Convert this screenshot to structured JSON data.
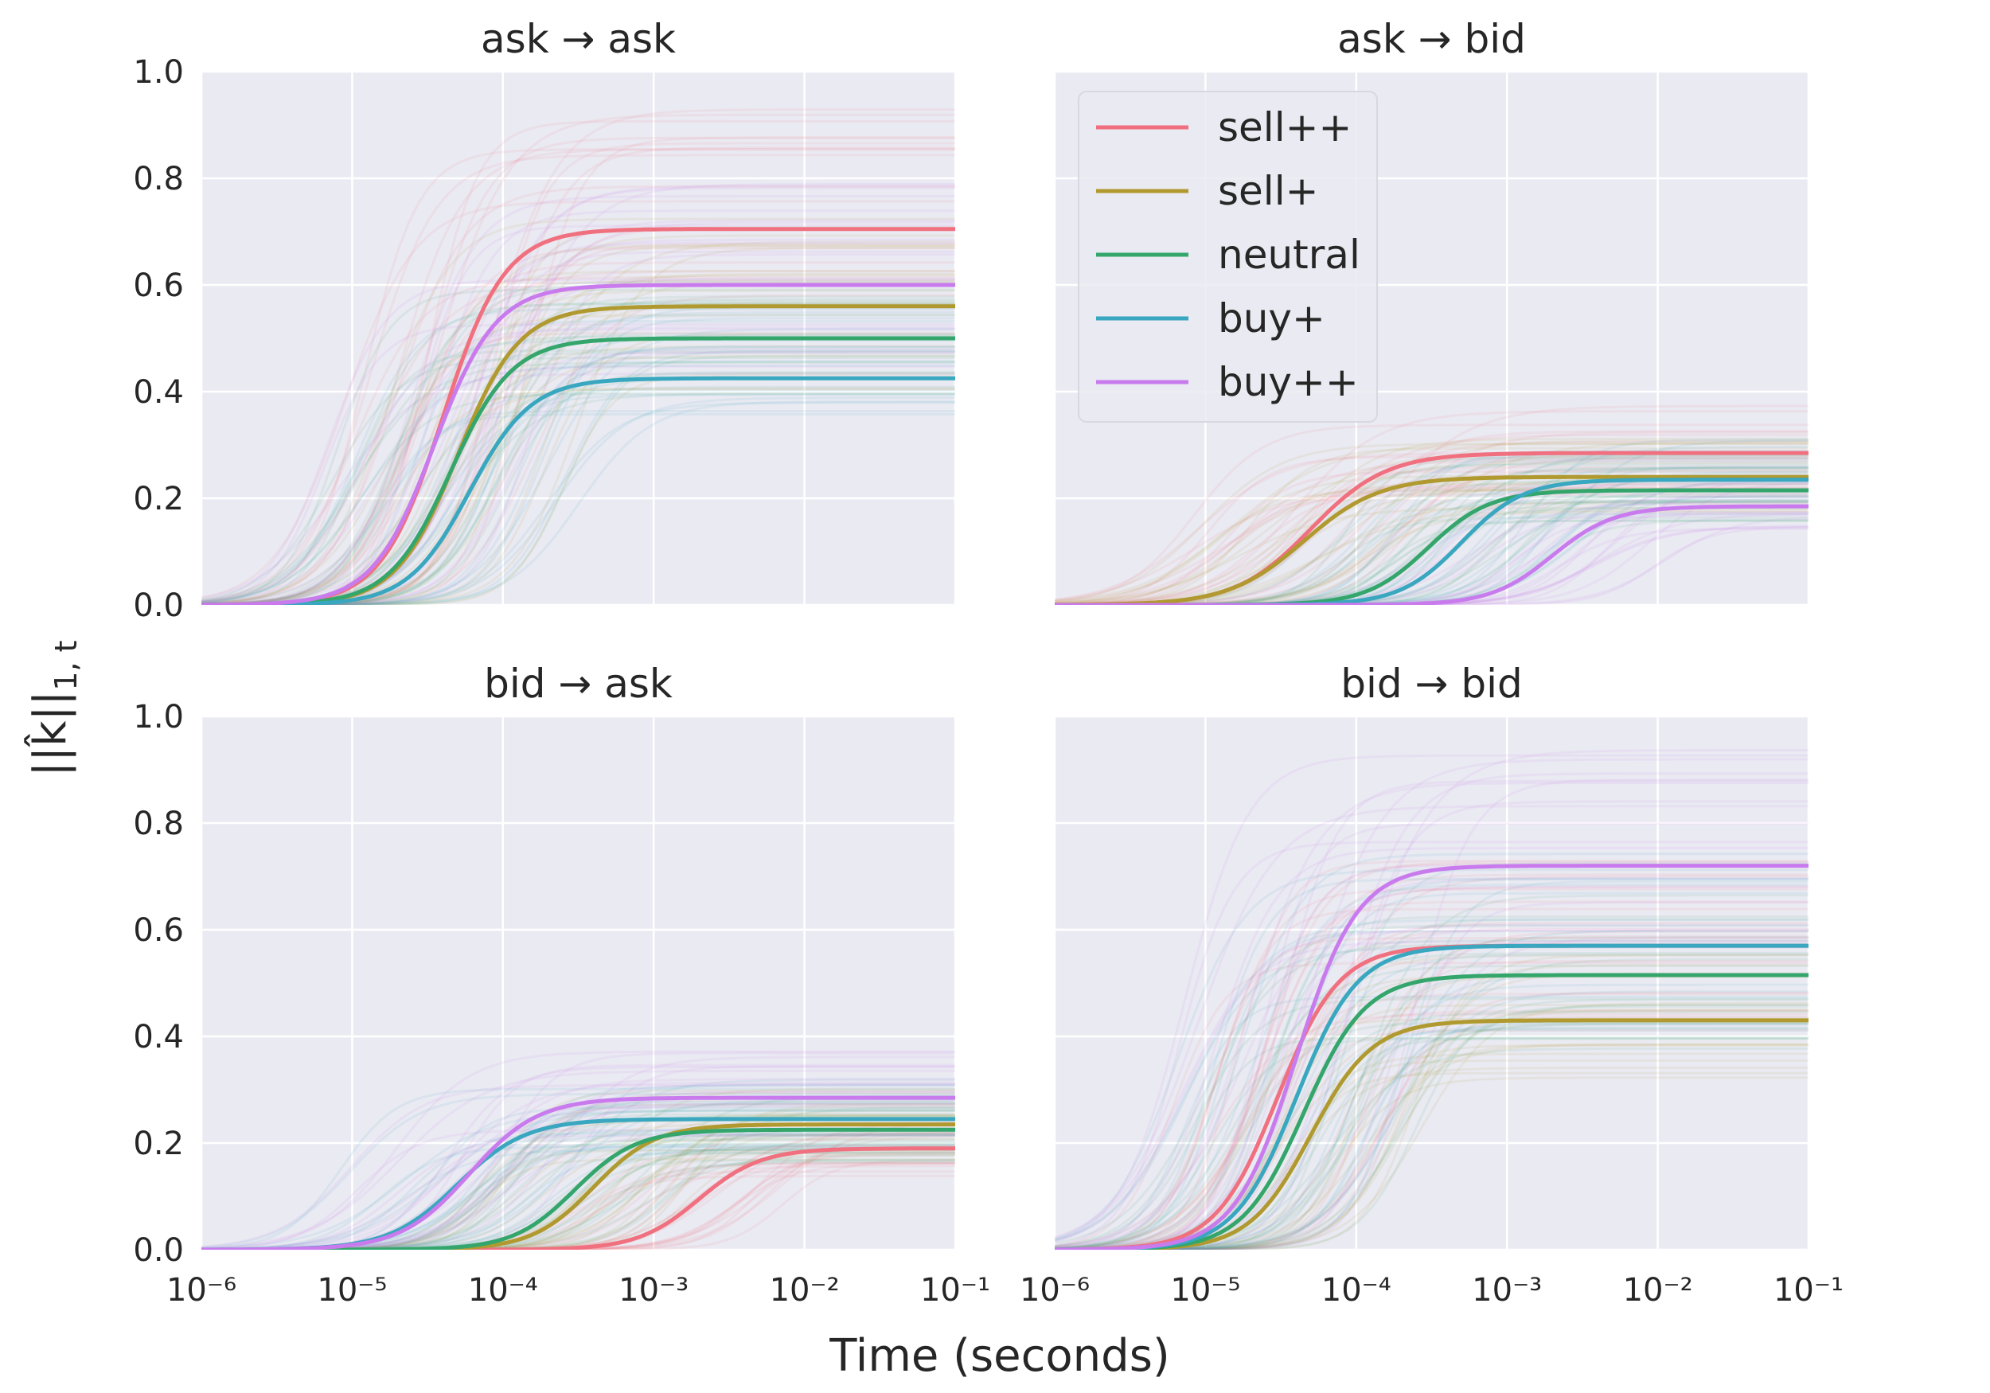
{
  "figure": {
    "xlabel": "Time (seconds)",
    "ylabel": "||k̂||",
    "ylabel_sub": "1, t"
  },
  "colors": {
    "panel_bg": "#EAEAF2",
    "grid": "#FFFFFF",
    "sell++": "#F0707F",
    "sell+": "#B09A2F",
    "neutral": "#34A66C",
    "buy+": "#38A7BF",
    "buy++": "#C97BEE"
  },
  "legend": {
    "entries": [
      "sell++",
      "sell+",
      "neutral",
      "buy+",
      "buy++"
    ],
    "location": "upper-left of panel 2"
  },
  "chart_data": [
    {
      "type": "line",
      "title": "ask → ask",
      "xscale": "log",
      "xlim": [
        1e-06,
        0.1
      ],
      "ylim": [
        0,
        1
      ],
      "xticks": [
        "10⁻⁶",
        "10⁻⁵",
        "10⁻⁴",
        "10⁻³",
        "10⁻²",
        "10⁻¹"
      ],
      "yticks": [
        "0.0",
        "0.2",
        "0.4",
        "0.6",
        "0.8",
        "1.0"
      ],
      "series": [
        {
          "name": "sell++",
          "plateau": 0.705,
          "midpoint": 4e-05,
          "width": 0.45
        },
        {
          "name": "sell+",
          "plateau": 0.56,
          "midpoint": 5e-05,
          "width": 0.45
        },
        {
          "name": "neutral",
          "plateau": 0.5,
          "midpoint": 4.5e-05,
          "width": 0.45
        },
        {
          "name": "buy+",
          "plateau": 0.425,
          "midpoint": 6e-05,
          "width": 0.45
        },
        {
          "name": "buy++",
          "plateau": 0.6,
          "midpoint": 3.5e-05,
          "width": 0.45
        }
      ]
    },
    {
      "type": "line",
      "title": "ask → bid",
      "xscale": "log",
      "xlim": [
        1e-06,
        0.1
      ],
      "ylim": [
        0,
        1
      ],
      "xticks": [
        "10⁻⁶",
        "10⁻⁵",
        "10⁻⁴",
        "10⁻³",
        "10⁻²",
        "10⁻¹"
      ],
      "yticks": [
        "0.0",
        "0.2",
        "0.4",
        "0.6",
        "0.8",
        "1.0"
      ],
      "series": [
        {
          "name": "sell++",
          "plateau": 0.285,
          "midpoint": 5e-05,
          "width": 0.55
        },
        {
          "name": "sell+",
          "plateau": 0.24,
          "midpoint": 4.5e-05,
          "width": 0.55
        },
        {
          "name": "neutral",
          "plateau": 0.215,
          "midpoint": 0.0003,
          "width": 0.45
        },
        {
          "name": "buy+",
          "plateau": 0.235,
          "midpoint": 0.0005,
          "width": 0.45
        },
        {
          "name": "buy++",
          "plateau": 0.185,
          "midpoint": 0.002,
          "width": 0.45
        }
      ]
    },
    {
      "type": "line",
      "title": "bid → ask",
      "xscale": "log",
      "xlim": [
        1e-06,
        0.1
      ],
      "ylim": [
        0,
        1
      ],
      "xticks": [
        "10⁻⁶",
        "10⁻⁵",
        "10⁻⁴",
        "10⁻³",
        "10⁻²",
        "10⁻¹"
      ],
      "yticks": [
        "0.0",
        "0.2",
        "0.4",
        "0.6",
        "0.8",
        "1.0"
      ],
      "series": [
        {
          "name": "sell++",
          "plateau": 0.19,
          "midpoint": 0.002,
          "width": 0.45
        },
        {
          "name": "sell+",
          "plateau": 0.235,
          "midpoint": 0.0004,
          "width": 0.45
        },
        {
          "name": "neutral",
          "plateau": 0.225,
          "midpoint": 0.0003,
          "width": 0.45
        },
        {
          "name": "buy+",
          "plateau": 0.245,
          "midpoint": 5e-05,
          "width": 0.5
        },
        {
          "name": "buy++",
          "plateau": 0.285,
          "midpoint": 6e-05,
          "width": 0.5
        }
      ]
    },
    {
      "type": "line",
      "title": "bid → bid",
      "xscale": "log",
      "xlim": [
        1e-06,
        0.1
      ],
      "ylim": [
        0,
        1
      ],
      "xticks": [
        "10⁻⁶",
        "10⁻⁵",
        "10⁻⁴",
        "10⁻³",
        "10⁻²",
        "10⁻¹"
      ],
      "yticks": [
        "0.0",
        "0.2",
        "0.4",
        "0.6",
        "0.8",
        "1.0"
      ],
      "series": [
        {
          "name": "sell++",
          "plateau": 0.57,
          "midpoint": 3e-05,
          "width": 0.45
        },
        {
          "name": "sell+",
          "plateau": 0.43,
          "midpoint": 5e-05,
          "width": 0.45
        },
        {
          "name": "neutral",
          "plateau": 0.515,
          "midpoint": 4.5e-05,
          "width": 0.45
        },
        {
          "name": "buy+",
          "plateau": 0.57,
          "midpoint": 4e-05,
          "width": 0.45
        },
        {
          "name": "buy++",
          "plateau": 0.72,
          "midpoint": 4e-05,
          "width": 0.45
        }
      ]
    }
  ]
}
